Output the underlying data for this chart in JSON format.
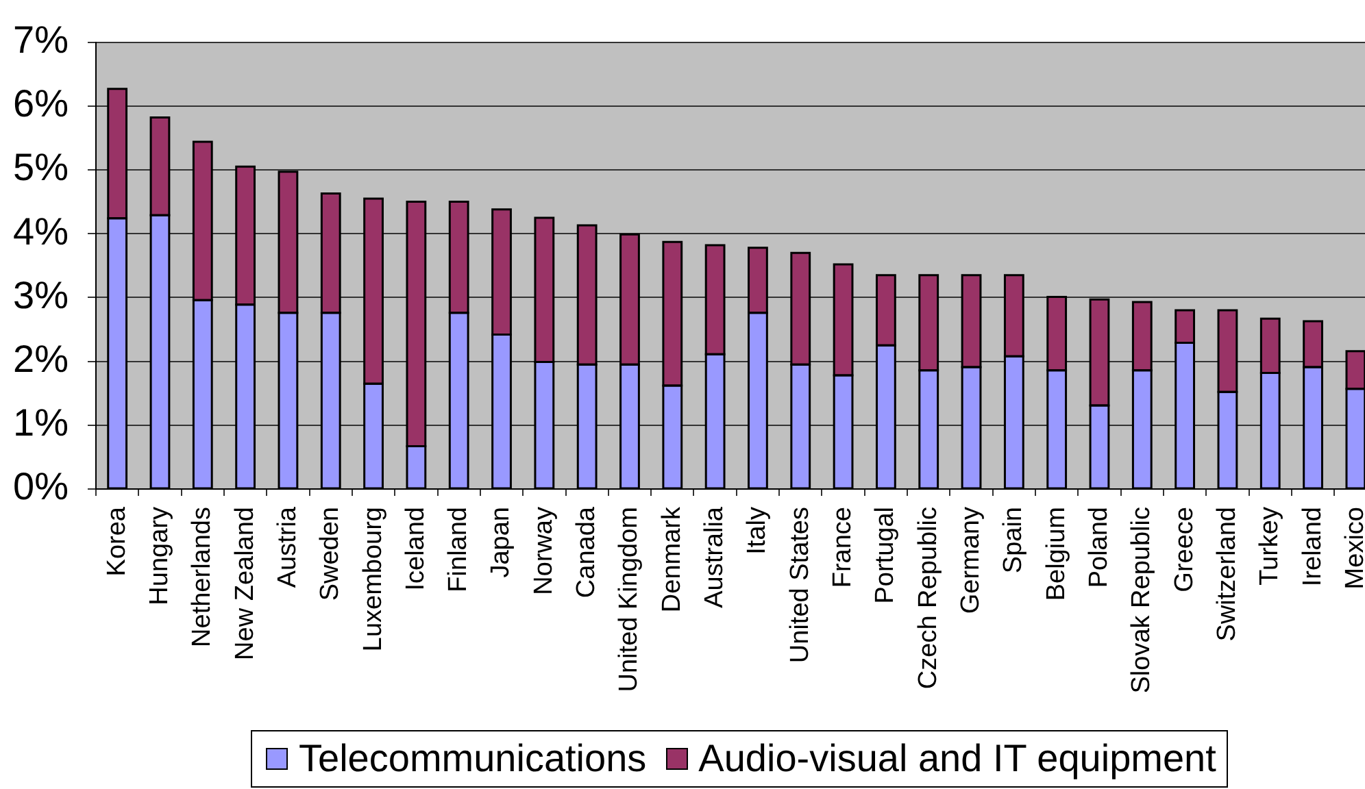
{
  "chart_data": {
    "type": "bar",
    "stacked": true,
    "categories": [
      "Korea",
      "Hungary",
      "Netherlands",
      "New Zealand",
      "Austria",
      "Sweden",
      "Luxembourg",
      "Iceland",
      "Finland",
      "Japan",
      "Norway",
      "Canada",
      "United Kingdom",
      "Denmark",
      "Australia",
      "Italy",
      "United States",
      "France",
      "Portugal",
      "Czech Republic",
      "Germany",
      "Spain",
      "Belgium",
      "Poland",
      "Slovak Republic",
      "Greece",
      "Switzerland",
      "Turkey",
      "Ireland",
      "Mexico"
    ],
    "series": [
      {
        "name": "Telecommunications",
        "color": "#9999ff",
        "values": [
          4.24,
          4.29,
          2.96,
          2.89,
          2.76,
          2.76,
          1.65,
          0.67,
          2.76,
          2.42,
          1.99,
          1.95,
          1.95,
          1.62,
          2.11,
          2.76,
          1.95,
          1.78,
          2.25,
          1.86,
          1.91,
          2.08,
          1.86,
          1.31,
          1.86,
          2.29,
          1.52,
          1.82,
          1.91,
          1.57
        ]
      },
      {
        "name": "Audio-visual and IT equipment",
        "color": "#993366",
        "values": [
          2.03,
          1.53,
          2.48,
          2.16,
          2.21,
          1.87,
          2.9,
          3.83,
          1.74,
          1.96,
          2.26,
          2.18,
          2.04,
          2.25,
          1.71,
          1.02,
          1.75,
          1.74,
          1.1,
          1.49,
          1.44,
          1.27,
          1.15,
          1.66,
          1.07,
          0.51,
          1.28,
          0.85,
          0.72,
          0.59
        ]
      }
    ],
    "ylim": [
      0,
      7
    ],
    "yticks": [
      {
        "value": 0,
        "label": "0%"
      },
      {
        "value": 1,
        "label": "1%"
      },
      {
        "value": 2,
        "label": "2%"
      },
      {
        "value": 3,
        "label": "3%"
      },
      {
        "value": 4,
        "label": "4%"
      },
      {
        "value": 5,
        "label": "5%"
      },
      {
        "value": 6,
        "label": "6%"
      },
      {
        "value": 7,
        "label": "7%"
      }
    ],
    "grid": "y",
    "legend": "bottom"
  }
}
